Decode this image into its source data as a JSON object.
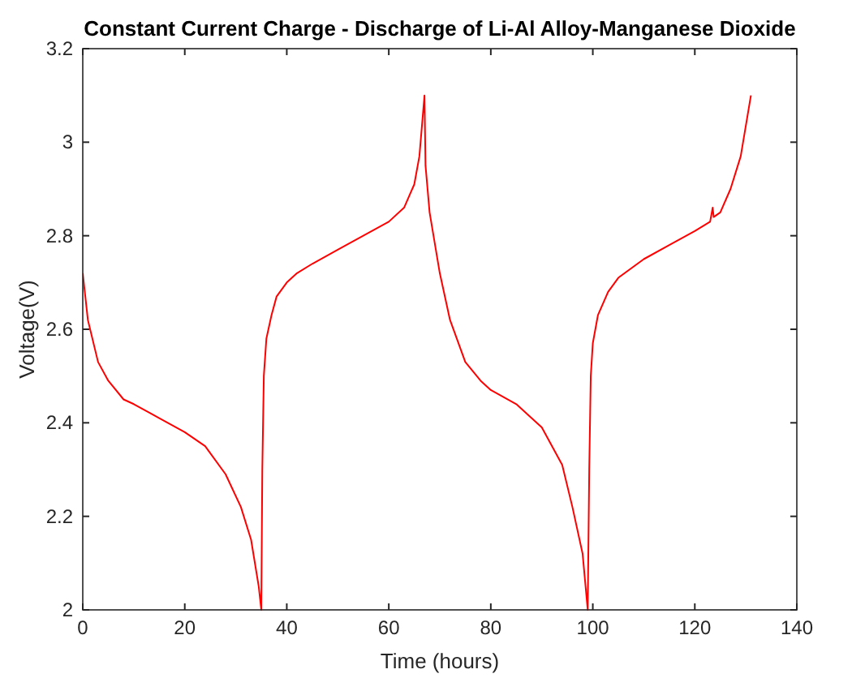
{
  "chart_data": {
    "type": "line",
    "title": "Constant Current Charge - Discharge of Li-Al Alloy-Manganese Dioxide",
    "xlabel": "Time (hours)",
    "ylabel": "Voltage(V)",
    "xlim": [
      0,
      140
    ],
    "xticks": [
      0,
      20,
      40,
      60,
      80,
      100,
      120,
      140
    ],
    "ylim": [
      2,
      3.2
    ],
    "yticks": [
      2,
      2.2,
      2.4,
      2.6,
      2.8,
      3,
      3.2
    ],
    "grid": false,
    "marker": "none",
    "line_style": "solid",
    "series": [
      {
        "color": "#ff0000",
        "x": [
          0,
          1,
          3,
          5,
          8,
          10,
          15,
          20,
          24,
          28,
          31,
          33,
          34.5,
          35,
          35.2,
          35.5,
          36,
          37,
          38,
          40,
          42,
          45,
          50,
          55,
          60,
          63,
          65,
          66,
          67,
          67.2,
          68,
          70,
          72,
          75,
          78,
          80,
          85,
          90,
          94,
          96,
          98,
          99,
          99.3,
          99.6,
          100,
          101,
          103,
          105,
          110,
          115,
          120,
          123,
          123.5,
          123.7,
          125,
          127,
          129,
          131
        ],
        "values": [
          2.72,
          2.62,
          2.53,
          2.49,
          2.45,
          2.44,
          2.41,
          2.38,
          2.35,
          2.29,
          2.22,
          2.15,
          2.05,
          2.0,
          2.3,
          2.5,
          2.58,
          2.63,
          2.67,
          2.7,
          2.72,
          2.74,
          2.77,
          2.8,
          2.83,
          2.86,
          2.91,
          2.97,
          3.1,
          2.95,
          2.85,
          2.72,
          2.62,
          2.53,
          2.49,
          2.47,
          2.44,
          2.39,
          2.31,
          2.22,
          2.12,
          2.0,
          2.3,
          2.5,
          2.57,
          2.63,
          2.68,
          2.71,
          2.75,
          2.78,
          2.81,
          2.83,
          2.86,
          2.84,
          2.85,
          2.9,
          2.97,
          3.1
        ]
      }
    ]
  }
}
